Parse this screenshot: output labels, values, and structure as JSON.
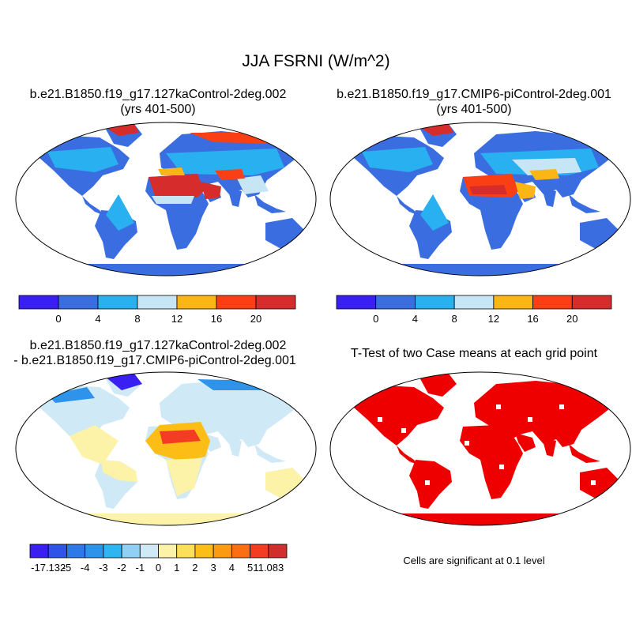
{
  "main_title": "JJA FSRNI (W/m^2)",
  "panels": [
    {
      "title": "b.e21.B1850.f19_g17.127kaControl-2deg.002",
      "subtitle": "(yrs 401-500)"
    },
    {
      "title": "b.e21.B1850.f19_g17.CMIP6-piControl-2deg.001",
      "subtitle": "(yrs 401-500)"
    },
    {
      "title": "b.e21.B1850.f19_g17.127kaControl-2deg.002",
      "subtitle": "- b.e21.B1850.f19_g17.CMIP6-piControl-2deg.001"
    },
    {
      "title": "T-Test of two Case means at each grid point",
      "note": "Cells are significant at 0.1 level"
    }
  ],
  "colorbars": {
    "case": {
      "colors": [
        "#3a1ff2",
        "#3a6ee0",
        "#28b0f0",
        "#c6e6f6",
        "#fbb515",
        "#fb3f15",
        "#d62c2c"
      ],
      "labels": [
        "0",
        "4",
        "8",
        "12",
        "16",
        "20"
      ]
    },
    "diff": {
      "colors": [
        "#3a1ff2",
        "#2f55e8",
        "#2f79e6",
        "#2e93ea",
        "#2fb6f0",
        "#8fd0f4",
        "#cfe9f7",
        "#fdf3a8",
        "#fde05a",
        "#fcbd17",
        "#fb9b12",
        "#fb6e14",
        "#f43c24",
        "#d12e2e"
      ],
      "labels": [
        "-17.132",
        "-5",
        "-4",
        "-3",
        "-2",
        "-1",
        "0",
        "1",
        "2",
        "3",
        "4",
        "5",
        "11.083"
      ]
    }
  },
  "map_colors": {
    "ocean": "#ffffff",
    "case_land": "#3a6ee0",
    "case_light": "#28b0f0",
    "case_pale": "#c6e6f6",
    "case_hot": "#fb3f15",
    "case_warm": "#fbb515",
    "case_red": "#d62c2c",
    "diff_base": "#cfe9f7",
    "diff_yellow": "#fdf3a8",
    "diff_orange": "#fcbd17",
    "diff_red": "#f43c24",
    "diff_blue": "#3a1ff2",
    "ttest_red": "#ee0000"
  }
}
